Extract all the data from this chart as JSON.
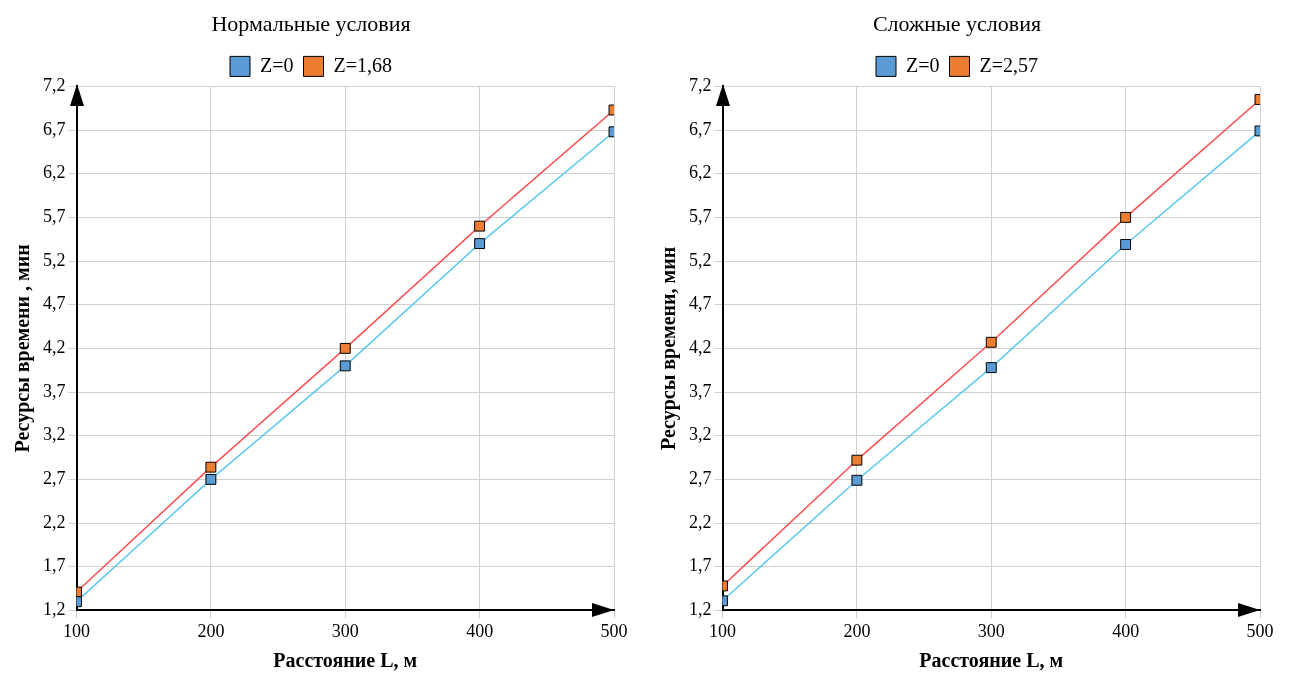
{
  "chart_data": [
    {
      "type": "line",
      "title": "Нормальные условия",
      "xlabel": "Расстояние L, м",
      "ylabel": "Ресурсы времени , мин",
      "x": [
        100,
        200,
        300,
        400,
        500
      ],
      "xlim": [
        100,
        500
      ],
      "xticks": [
        100,
        200,
        300,
        400,
        500
      ],
      "ylim": [
        1.2,
        7.2
      ],
      "yticks": [
        {
          "value": 1.2,
          "label": "1,2"
        },
        {
          "value": 1.7,
          "label": "1,7"
        },
        {
          "value": 2.2,
          "label": "2,2"
        },
        {
          "value": 2.7,
          "label": "2,7"
        },
        {
          "value": 3.2,
          "label": "3,2"
        },
        {
          "value": 3.7,
          "label": "3,7"
        },
        {
          "value": 4.2,
          "label": "4,2"
        },
        {
          "value": 4.7,
          "label": "4,7"
        },
        {
          "value": 5.2,
          "label": "5,2"
        },
        {
          "value": 5.7,
          "label": "5,7"
        },
        {
          "value": 6.2,
          "label": "6,2"
        },
        {
          "value": 6.7,
          "label": "6,7"
        },
        {
          "value": 7.2,
          "label": "7,2"
        }
      ],
      "grid": true,
      "legend": "top",
      "marker": "square",
      "line_style": "solid",
      "series": [
        {
          "name": "Z=0",
          "color": "#5bc8f0",
          "colors": [
            "#5b9bd5",
            "#5b9bd5",
            "#5b9bd5",
            "#5b9bd5",
            "#5b9bd5"
          ],
          "values": [
            1.3,
            2.7,
            4.0,
            5.4,
            6.68
          ]
        },
        {
          "name": "Z=1,68",
          "color": "#ff4d4d",
          "colors": [
            "#ed7d31",
            "#ed7d31",
            "#ed7d31",
            "#ed7d31",
            "#ed7d31"
          ],
          "values": [
            1.41,
            2.84,
            4.2,
            5.6,
            6.93
          ]
        }
      ]
    },
    {
      "type": "line",
      "title": "Сложные условия",
      "xlabel": "Расстояние L, м",
      "ylabel": "Ресурсы времени, мин",
      "x": [
        100,
        200,
        300,
        400,
        500
      ],
      "xlim": [
        100,
        500
      ],
      "xticks": [
        100,
        200,
        300,
        400,
        500
      ],
      "ylim": [
        1.2,
        7.2
      ],
      "yticks": [
        {
          "value": 1.2,
          "label": "1,2"
        },
        {
          "value": 1.7,
          "label": "1,7"
        },
        {
          "value": 2.2,
          "label": "2,2"
        },
        {
          "value": 2.7,
          "label": "2,7"
        },
        {
          "value": 3.2,
          "label": "3,2"
        },
        {
          "value": 3.7,
          "label": "3,7"
        },
        {
          "value": 4.2,
          "label": "4,2"
        },
        {
          "value": 4.7,
          "label": "4,7"
        },
        {
          "value": 5.2,
          "label": "5,2"
        },
        {
          "value": 5.7,
          "label": "5,7"
        },
        {
          "value": 6.2,
          "label": "6,2"
        },
        {
          "value": 6.7,
          "label": "6,7"
        },
        {
          "value": 7.2,
          "label": "7,2"
        }
      ],
      "grid": true,
      "legend": "top",
      "marker": "square",
      "line_style": "solid",
      "series": [
        {
          "name": "Z=0",
          "color": "#5bc8f0",
          "colors": [
            "#5b9bd5",
            "#5b9bd5",
            "#5b9bd5",
            "#5b9bd5",
            "#5b9bd5"
          ],
          "values": [
            1.31,
            2.69,
            3.98,
            5.39,
            6.69
          ]
        },
        {
          "name": "Z=2,57",
          "color": "#ff4d4d",
          "colors": [
            "#ed7d31",
            "#ed7d31",
            "#ed7d31",
            "#ed7d31",
            "#ed7d31"
          ],
          "values": [
            1.48,
            2.92,
            4.27,
            5.7,
            7.05
          ]
        }
      ]
    }
  ]
}
